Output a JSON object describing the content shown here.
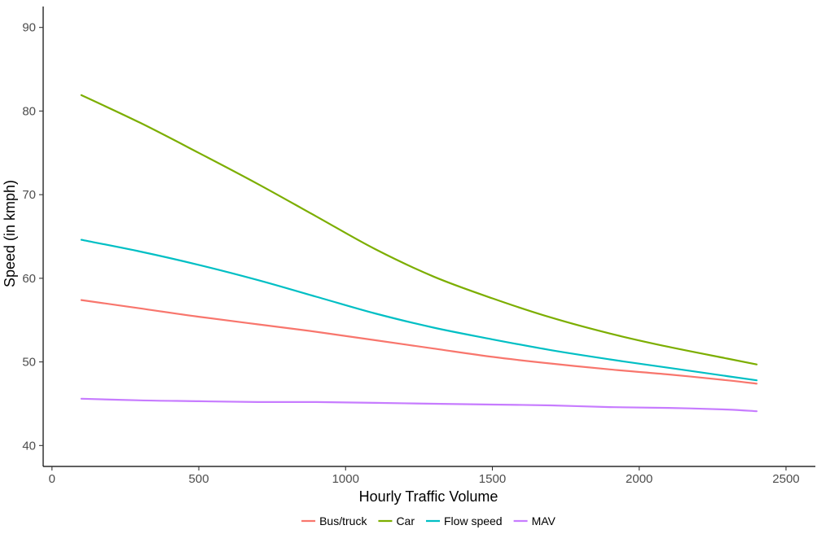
{
  "chart_data": {
    "type": "line",
    "title": "",
    "xlabel": "Hourly Traffic Volume",
    "ylabel": "Speed (in kmph)",
    "xlim": [
      -30,
      2600
    ],
    "ylim": [
      37.5,
      92.5
    ],
    "x_ticks": [
      0,
      500,
      1000,
      1500,
      2000,
      2500
    ],
    "y_ticks": [
      40,
      50,
      60,
      70,
      80,
      90
    ],
    "grid": false,
    "legend_position": "bottom",
    "series": [
      {
        "name": "Bus/truck",
        "color": "#F8766D",
        "x": [
          100,
          300,
          500,
          700,
          900,
          1100,
          1300,
          1500,
          1700,
          1900,
          2100,
          2300,
          2400
        ],
        "y": [
          57.4,
          56.4,
          55.4,
          54.5,
          53.6,
          52.6,
          51.6,
          50.6,
          49.8,
          49.1,
          48.5,
          47.8,
          47.4
        ]
      },
      {
        "name": "Car",
        "color": "#7CAE00",
        "x": [
          100,
          300,
          500,
          700,
          900,
          1100,
          1300,
          1500,
          1700,
          1900,
          2100,
          2300,
          2400
        ],
        "y": [
          81.9,
          78.6,
          75.0,
          71.3,
          67.4,
          63.5,
          60.2,
          57.6,
          55.3,
          53.4,
          51.8,
          50.4,
          49.7
        ]
      },
      {
        "name": "Flow speed",
        "color": "#00BFC4",
        "x": [
          100,
          300,
          500,
          700,
          900,
          1100,
          1300,
          1500,
          1700,
          1900,
          2100,
          2300,
          2400
        ],
        "y": [
          64.6,
          63.2,
          61.6,
          59.8,
          57.8,
          55.8,
          54.1,
          52.7,
          51.4,
          50.3,
          49.3,
          48.3,
          47.8
        ]
      },
      {
        "name": "MAV",
        "color": "#C77CFF",
        "x": [
          100,
          300,
          500,
          700,
          900,
          1100,
          1300,
          1500,
          1700,
          1900,
          2100,
          2300,
          2400
        ],
        "y": [
          45.6,
          45.4,
          45.3,
          45.2,
          45.2,
          45.1,
          45.0,
          44.9,
          44.8,
          44.6,
          44.5,
          44.3,
          44.1
        ]
      }
    ]
  }
}
